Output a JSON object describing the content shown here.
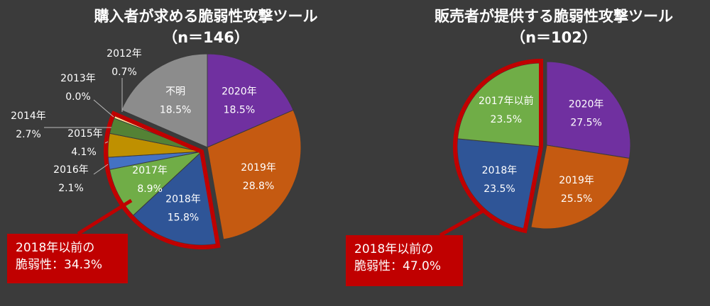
{
  "chart_data": [
    {
      "type": "pie",
      "title": "購入者が求める脆弱性攻撃ツール",
      "subtitle": "（n＝146）",
      "slices": [
        {
          "label": "2020年",
          "value": 18.5,
          "value_label": "18.5%",
          "color": "#7030a0"
        },
        {
          "label": "2019年",
          "value": 28.8,
          "value_label": "28.8%",
          "color": "#c55a11"
        },
        {
          "label": "2018年",
          "value": 15.8,
          "value_label": "15.8%",
          "color": "#2f5597"
        },
        {
          "label": "2017年",
          "value": 8.9,
          "value_label": "8.9%",
          "color": "#70ad47"
        },
        {
          "label": "2016年",
          "value": 2.1,
          "value_label": "2.1%",
          "color": "#4472c4"
        },
        {
          "label": "2015年",
          "value": 4.1,
          "value_label": "4.1%",
          "color": "#bf9000"
        },
        {
          "label": "2014年",
          "value": 2.7,
          "value_label": "2.7%",
          "color": "#548235"
        },
        {
          "label": "2013年",
          "value": 0.0,
          "value_label": "0.0%",
          "color": "#ffd966"
        },
        {
          "label": "2012年",
          "value": 0.7,
          "value_label": "0.7%",
          "color": "#ffe699"
        },
        {
          "label": "不明",
          "value": 18.5,
          "value_label": "18.5%",
          "color": "#8c8c8c"
        }
      ],
      "highlight_from_index": 2,
      "callout": {
        "line1": "2018年以前の",
        "line2": "脆弱性：34.3%"
      }
    },
    {
      "type": "pie",
      "title": "販売者が提供する脆弱性攻撃ツール",
      "subtitle": "（n＝102）",
      "slices": [
        {
          "label": "2020年",
          "value": 27.5,
          "value_label": "27.5%",
          "color": "#7030a0"
        },
        {
          "label": "2019年",
          "value": 25.5,
          "value_label": "25.5%",
          "color": "#c55a11"
        },
        {
          "label": "2018年",
          "value": 23.5,
          "value_label": "23.5%",
          "color": "#2f5597"
        },
        {
          "label": "2017年以前",
          "value": 23.5,
          "value_label": "23.5%",
          "color": "#70ad47"
        }
      ],
      "highlight_from_index": 2,
      "callout": {
        "line1": "2018年以前の",
        "line2": "脆弱性：47.0%"
      }
    }
  ],
  "highlight_color": "#c00000"
}
